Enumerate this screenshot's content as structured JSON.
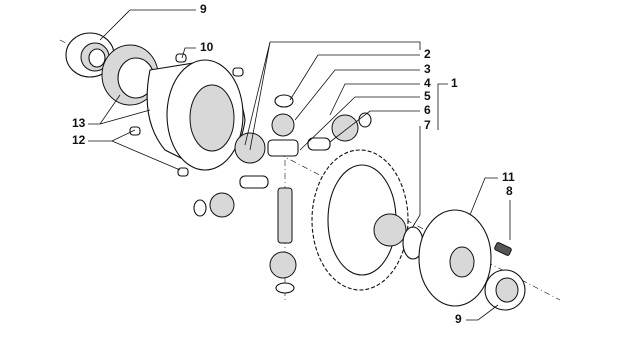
{
  "callouts": [
    {
      "label": "9"
    },
    {
      "label": "10"
    },
    {
      "label": "13"
    },
    {
      "label": "12"
    },
    {
      "label": "2"
    },
    {
      "label": "3"
    },
    {
      "label": "4"
    },
    {
      "label": "1"
    },
    {
      "label": "5"
    },
    {
      "label": "6"
    },
    {
      "label": "7"
    },
    {
      "label": "11"
    },
    {
      "label": "8"
    },
    {
      "label": "9"
    }
  ]
}
